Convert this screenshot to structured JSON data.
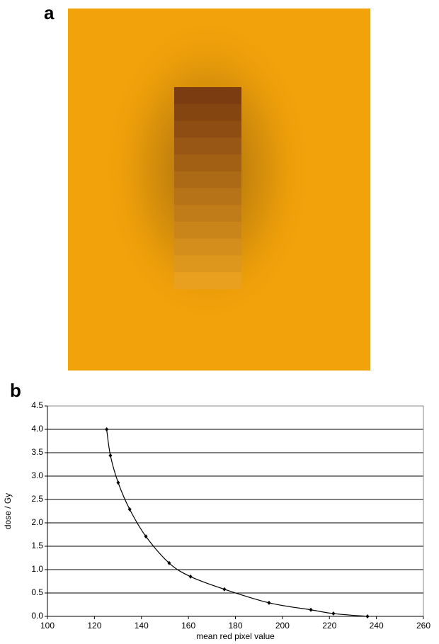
{
  "panels": [
    "a",
    "b"
  ],
  "chart_data": {
    "type": "line",
    "x": [
      125.2,
      126.8,
      130.1,
      135,
      141.9,
      151.8,
      160.9,
      175.3,
      194.3,
      212.1,
      221.7,
      236.2
    ],
    "series": [
      {
        "color": "#000000",
        "values": [
          4.0,
          3.44,
          2.86,
          2.29,
          1.71,
          1.14,
          0.85,
          0.58,
          0.29,
          0.14,
          0.06,
          0.0
        ]
      }
    ],
    "xlim": [
      100,
      260
    ],
    "xticks": [
      100,
      120,
      140,
      160,
      180,
      200,
      220,
      240,
      260
    ],
    "ylim": [
      0,
      4.5
    ],
    "yticks": [
      {
        "value": 0,
        "label": "0.0"
      },
      {
        "value": 0.5,
        "label": "0.5"
      },
      {
        "value": 1,
        "label": "1.0"
      },
      {
        "value": 1.5,
        "label": "1.5"
      },
      {
        "value": 2,
        "label": "2.0"
      },
      {
        "value": 2.5,
        "label": "2.5"
      },
      {
        "value": 3,
        "label": "3.0"
      },
      {
        "value": 3.5,
        "label": "3.5"
      },
      {
        "value": 4,
        "label": "4.0"
      },
      {
        "value": 4.5,
        "label": "4.5"
      }
    ],
    "grid": true,
    "xlabel": "mean red pixel value",
    "ylabel": "dose / Gy"
  }
}
